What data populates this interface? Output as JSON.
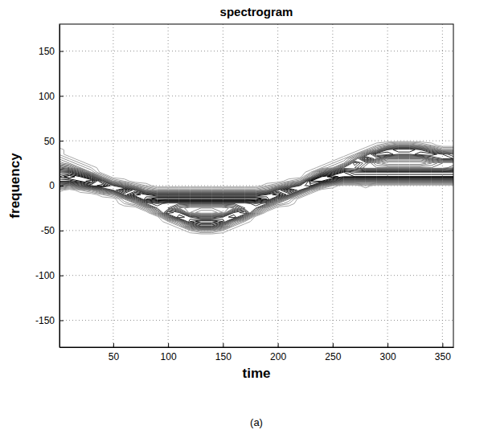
{
  "chart_data": {
    "type": "contour",
    "title": "spectrogram",
    "x_label": "time",
    "y_label": "frequency",
    "caption": "(a)",
    "xlim": [
      1,
      360
    ],
    "ylim": [
      -180,
      180
    ],
    "xticks": [
      50,
      100,
      150,
      200,
      250,
      300,
      350
    ],
    "yticks": [
      -150,
      -100,
      -50,
      0,
      50,
      100,
      150
    ],
    "grid": true,
    "color": "#000000",
    "levels": [
      0.5,
      1,
      1.5,
      2,
      2.5,
      3,
      3.5,
      4,
      4.5,
      5,
      5.5,
      6,
      6.5,
      7,
      7.5,
      8,
      8.5
    ],
    "x": [
      0,
      10,
      20,
      30,
      40,
      50,
      60,
      70,
      80,
      90,
      100,
      110,
      120,
      130,
      140,
      150,
      160,
      170,
      180,
      190,
      200,
      210,
      220,
      230,
      240,
      250,
      260,
      270,
      280,
      290,
      300,
      310,
      320,
      330,
      340,
      350,
      360
    ],
    "y": [
      -60,
      -55,
      -50,
      -45,
      -40,
      -35,
      -30,
      -25,
      -20,
      -15,
      -10,
      -5,
      0,
      5,
      10,
      15,
      20,
      25,
      30,
      35,
      40,
      45,
      50,
      55,
      60
    ],
    "z": [
      [
        0,
        0,
        0,
        0,
        0,
        0,
        0,
        0,
        0,
        0,
        0,
        0,
        0,
        0,
        0,
        0,
        0,
        0,
        0,
        0,
        0,
        0,
        0,
        0,
        0,
        0,
        0,
        0,
        0,
        0,
        0,
        0,
        0,
        0,
        0,
        0,
        0
      ],
      [
        0,
        0,
        0,
        0,
        0,
        0,
        0,
        0,
        0,
        0,
        0,
        0,
        0,
        0,
        0,
        0,
        0,
        0,
        0,
        0,
        0,
        0,
        0,
        0,
        0,
        0,
        0,
        0,
        0,
        0,
        0,
        0,
        0,
        0,
        0,
        0,
        0
      ],
      [
        0,
        0,
        0,
        0,
        0,
        0,
        0,
        0,
        0,
        0,
        0,
        0,
        1,
        2,
        2,
        1,
        0,
        0,
        0,
        0,
        0,
        0,
        0,
        0,
        0,
        0,
        0,
        0,
        0,
        0,
        0,
        0,
        0,
        0,
        0,
        0,
        0
      ],
      [
        0,
        0,
        0,
        0,
        0,
        0,
        0,
        0,
        0,
        0,
        0,
        1,
        4,
        6,
        6,
        4,
        1,
        0,
        0,
        0,
        0,
        0,
        0,
        0,
        0,
        0,
        0,
        0,
        0,
        0,
        0,
        0,
        0,
        0,
        0,
        0,
        0
      ],
      [
        0,
        0,
        0,
        0,
        0,
        0,
        0,
        0,
        0,
        0,
        1,
        3,
        7,
        8,
        8,
        7,
        3,
        1,
        0,
        0,
        0,
        0,
        0,
        0,
        0,
        0,
        0,
        0,
        0,
        0,
        0,
        0,
        0,
        0,
        0,
        0,
        0
      ],
      [
        0,
        0,
        0,
        0,
        0,
        0,
        0,
        0,
        0,
        0,
        4,
        7,
        6,
        5,
        5,
        6,
        7,
        4,
        0,
        0,
        0,
        0,
        0,
        0,
        0,
        0,
        0,
        0,
        0,
        0,
        0,
        0,
        0,
        0,
        0,
        0,
        0
      ],
      [
        0,
        0,
        0,
        0,
        0,
        0,
        0,
        0,
        0,
        3,
        7,
        6,
        2,
        1,
        1,
        2,
        6,
        7,
        3,
        0,
        0,
        0,
        0,
        0,
        0,
        0,
        0,
        0,
        0,
        0,
        0,
        0,
        0,
        0,
        0,
        0,
        0
      ],
      [
        0,
        0,
        0,
        0,
        0,
        0,
        0,
        0,
        2,
        5,
        5,
        3,
        2,
        2,
        2,
        2,
        3,
        5,
        5,
        2,
        0,
        0,
        0,
        0,
        0,
        0,
        0,
        0,
        0,
        0,
        0,
        0,
        0,
        0,
        0,
        0,
        0
      ],
      [
        0,
        0,
        0,
        0,
        0,
        0,
        1,
        2,
        5,
        6,
        5,
        5,
        5,
        5,
        5,
        5,
        5,
        5,
        6,
        5,
        2,
        1,
        0,
        0,
        0,
        0,
        0,
        0,
        0,
        0,
        0,
        0,
        0,
        0,
        0,
        0,
        0
      ],
      [
        0,
        0,
        0,
        0,
        0,
        0,
        2,
        5,
        8,
        9,
        9,
        9,
        9,
        9,
        9,
        9,
        9,
        9,
        9,
        8,
        5,
        2,
        0,
        0,
        0,
        0,
        0,
        0,
        0,
        0,
        0,
        0,
        0,
        0,
        0,
        0,
        0
      ],
      [
        0,
        0,
        0,
        0,
        1,
        2,
        6,
        8,
        7,
        6,
        6,
        6,
        6,
        6,
        6,
        6,
        6,
        6,
        6,
        7,
        8,
        6,
        2,
        0,
        0,
        0,
        0,
        0,
        0,
        0,
        0,
        0,
        0,
        0,
        0,
        0,
        0
      ],
      [
        1,
        0,
        1,
        2,
        4,
        6,
        8,
        6,
        3,
        2,
        2,
        2,
        2,
        2,
        2,
        2,
        2,
        2,
        2,
        3,
        6,
        8,
        6,
        2,
        0,
        0,
        0,
        0,
        0,
        0,
        0,
        0,
        0,
        0,
        0,
        0,
        0
      ],
      [
        4,
        3,
        5,
        7,
        8,
        6,
        4,
        2,
        1,
        0,
        0,
        0,
        0,
        0,
        0,
        0,
        0,
        0,
        0,
        1,
        2,
        4,
        6,
        7,
        3,
        1,
        0,
        0,
        1,
        0,
        0,
        0,
        0,
        0,
        0,
        0,
        0
      ],
      [
        7,
        7,
        8,
        9,
        6,
        2,
        1,
        0,
        0,
        0,
        0,
        0,
        0,
        0,
        0,
        0,
        0,
        0,
        0,
        0,
        0,
        1,
        2,
        8,
        8,
        6,
        4,
        4,
        4,
        4,
        4,
        4,
        4,
        4,
        4,
        4,
        4
      ],
      [
        8,
        9,
        8,
        6,
        2,
        0,
        0,
        0,
        0,
        0,
        0,
        0,
        0,
        0,
        0,
        0,
        0,
        0,
        0,
        0,
        0,
        0,
        0,
        3,
        8,
        9,
        8,
        8,
        8,
        8,
        8,
        8,
        8,
        8,
        8,
        8,
        8
      ],
      [
        7,
        7,
        5,
        2,
        0,
        0,
        0,
        0,
        0,
        0,
        0,
        0,
        0,
        0,
        0,
        0,
        0,
        0,
        0,
        0,
        0,
        0,
        0,
        1,
        4,
        6,
        8,
        7,
        7,
        7,
        7,
        7,
        7,
        7,
        7,
        7,
        7
      ],
      [
        5,
        4,
        2,
        1,
        0,
        0,
        0,
        0,
        0,
        0,
        0,
        0,
        0,
        0,
        0,
        0,
        0,
        0,
        0,
        0,
        0,
        0,
        0,
        0,
        1,
        2,
        5,
        5,
        3,
        3,
        3,
        3,
        3,
        3,
        3,
        3,
        4
      ],
      [
        3,
        2,
        1,
        0,
        0,
        0,
        0,
        0,
        0,
        0,
        0,
        0,
        0,
        0,
        0,
        0,
        0,
        0,
        0,
        0,
        0,
        0,
        0,
        0,
        0,
        1,
        2,
        6,
        4,
        2,
        1,
        1,
        1,
        1,
        2,
        3,
        3
      ],
      [
        2,
        1,
        0,
        0,
        0,
        0,
        0,
        0,
        0,
        0,
        0,
        0,
        0,
        0,
        0,
        0,
        0,
        0,
        0,
        0,
        0,
        0,
        0,
        0,
        0,
        0,
        1,
        3,
        7,
        5,
        3,
        3,
        3,
        3,
        5,
        6,
        6
      ],
      [
        1,
        0,
        0,
        0,
        0,
        0,
        0,
        0,
        0,
        0,
        0,
        0,
        0,
        0,
        0,
        0,
        0,
        0,
        0,
        0,
        0,
        0,
        0,
        0,
        0,
        0,
        0,
        1,
        4,
        7,
        7,
        6,
        6,
        7,
        7,
        6,
        5
      ],
      [
        1,
        0,
        0,
        0,
        0,
        0,
        0,
        0,
        0,
        0,
        0,
        0,
        0,
        0,
        0,
        0,
        0,
        0,
        0,
        0,
        0,
        0,
        0,
        0,
        0,
        0,
        0,
        0,
        1,
        3,
        6,
        7,
        7,
        6,
        4,
        2,
        2
      ],
      [
        0,
        0,
        0,
        0,
        0,
        0,
        0,
        0,
        0,
        0,
        0,
        0,
        0,
        0,
        0,
        0,
        0,
        0,
        0,
        0,
        0,
        0,
        0,
        0,
        0,
        0,
        0,
        0,
        0,
        1,
        2,
        3,
        3,
        2,
        1,
        0,
        0
      ],
      [
        0,
        0,
        0,
        0,
        0,
        0,
        0,
        0,
        0,
        0,
        0,
        0,
        0,
        0,
        0,
        0,
        0,
        0,
        0,
        0,
        0,
        0,
        0,
        0,
        0,
        0,
        0,
        0,
        0,
        0,
        0,
        0,
        0,
        0,
        0,
        0,
        0
      ],
      [
        0,
        0,
        0,
        0,
        0,
        0,
        0,
        0,
        0,
        0,
        0,
        0,
        0,
        0,
        0,
        0,
        0,
        0,
        0,
        0,
        0,
        0,
        0,
        0,
        0,
        0,
        0,
        0,
        0,
        0,
        0,
        0,
        0,
        0,
        0,
        0,
        0
      ],
      [
        0,
        0,
        0,
        0,
        0,
        0,
        0,
        0,
        0,
        0,
        0,
        0,
        0,
        0,
        0,
        0,
        0,
        0,
        0,
        0,
        0,
        0,
        0,
        0,
        0,
        0,
        0,
        0,
        0,
        0,
        0,
        0,
        0,
        0,
        0,
        0,
        0
      ]
    ]
  }
}
